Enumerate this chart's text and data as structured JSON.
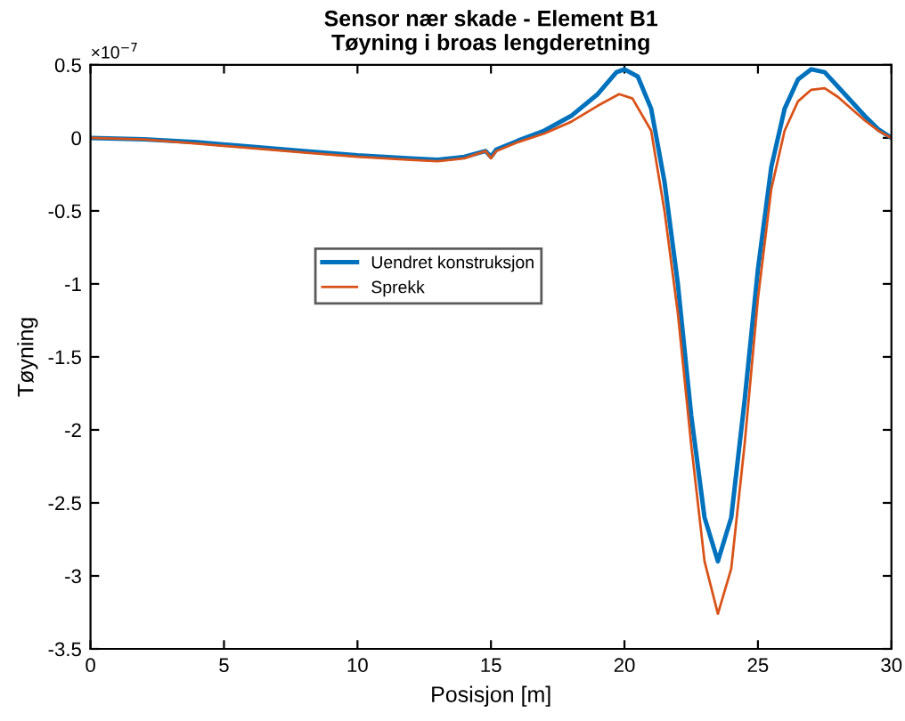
{
  "chart_data": {
    "type": "line",
    "title": "Sensor nær skade - Element B1\nTøyning i broas lengderetning",
    "xlabel": "Posisjon [m]",
    "ylabel": "Tøyning",
    "annotations": [
      "×10$^{−7}$"
    ],
    "series": [
      {
        "name": "Uendret konstruksjon",
        "color": "#0072bd",
        "x": [
          0,
          2,
          4,
          6,
          8,
          10,
          12,
          13,
          14,
          14.8,
          15,
          15.2,
          16,
          17,
          18,
          19,
          19.7,
          20,
          20.5,
          21,
          21.5,
          22,
          22.5,
          23,
          23.5,
          24,
          24.5,
          25,
          25.5,
          26,
          26.5,
          27,
          27.5,
          28,
          29,
          29.5,
          30
        ],
        "values": [
          0,
          -0.01,
          -0.03,
          -0.06,
          -0.09,
          -0.12,
          -0.14,
          -0.15,
          -0.13,
          -0.09,
          -0.13,
          -0.08,
          -0.02,
          0.05,
          0.15,
          0.3,
          0.45,
          0.47,
          0.42,
          0.2,
          -0.3,
          -1.0,
          -1.9,
          -2.6,
          -2.9,
          -2.6,
          -1.8,
          -0.9,
          -0.2,
          0.2,
          0.4,
          0.47,
          0.45,
          0.35,
          0.15,
          0.06,
          0
        ]
      },
      {
        "name": "Sprekk",
        "color": "#d95319",
        "x": [
          0,
          2,
          4,
          6,
          8,
          10,
          12,
          13,
          14,
          14.8,
          15,
          15.2,
          16,
          17,
          18,
          19,
          19.8,
          20.3,
          21,
          21.5,
          22,
          22.5,
          23,
          23.5,
          24,
          24.5,
          25,
          25.5,
          26,
          26.5,
          27,
          27.5,
          28,
          29,
          29.5,
          30
        ],
        "values": [
          0,
          -0.01,
          -0.04,
          -0.07,
          -0.1,
          -0.13,
          -0.15,
          -0.16,
          -0.14,
          -0.09,
          -0.14,
          -0.09,
          -0.03,
          0.03,
          0.11,
          0.22,
          0.3,
          0.27,
          0.05,
          -0.5,
          -1.2,
          -2.1,
          -2.9,
          -3.26,
          -2.95,
          -2.1,
          -1.1,
          -0.35,
          0.05,
          0.25,
          0.33,
          0.34,
          0.28,
          0.12,
          0.05,
          0
        ]
      }
    ],
    "xlim": [
      0,
      30
    ],
    "xticks": [
      0,
      5,
      10,
      15,
      20,
      25,
      30
    ],
    "ylim": [
      -3.5,
      0.5
    ],
    "yticks": [
      -3.5,
      -3,
      -2.5,
      -2,
      -1.5,
      -1,
      -0.5,
      0,
      0.5
    ],
    "grid": false,
    "legend": "center left",
    "marker": "none",
    "line_style": "solid"
  }
}
